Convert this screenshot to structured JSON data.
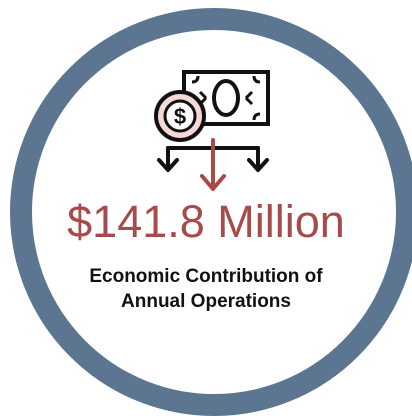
{
  "graphic": {
    "ring_color": "#5c7691",
    "accent_color": "#a84a4a",
    "icon": "money-flow-icon"
  },
  "stat": {
    "amount": "$141.8 Million",
    "caption_line1": "Economic Contribution of",
    "caption_line2": "Annual Operations"
  }
}
